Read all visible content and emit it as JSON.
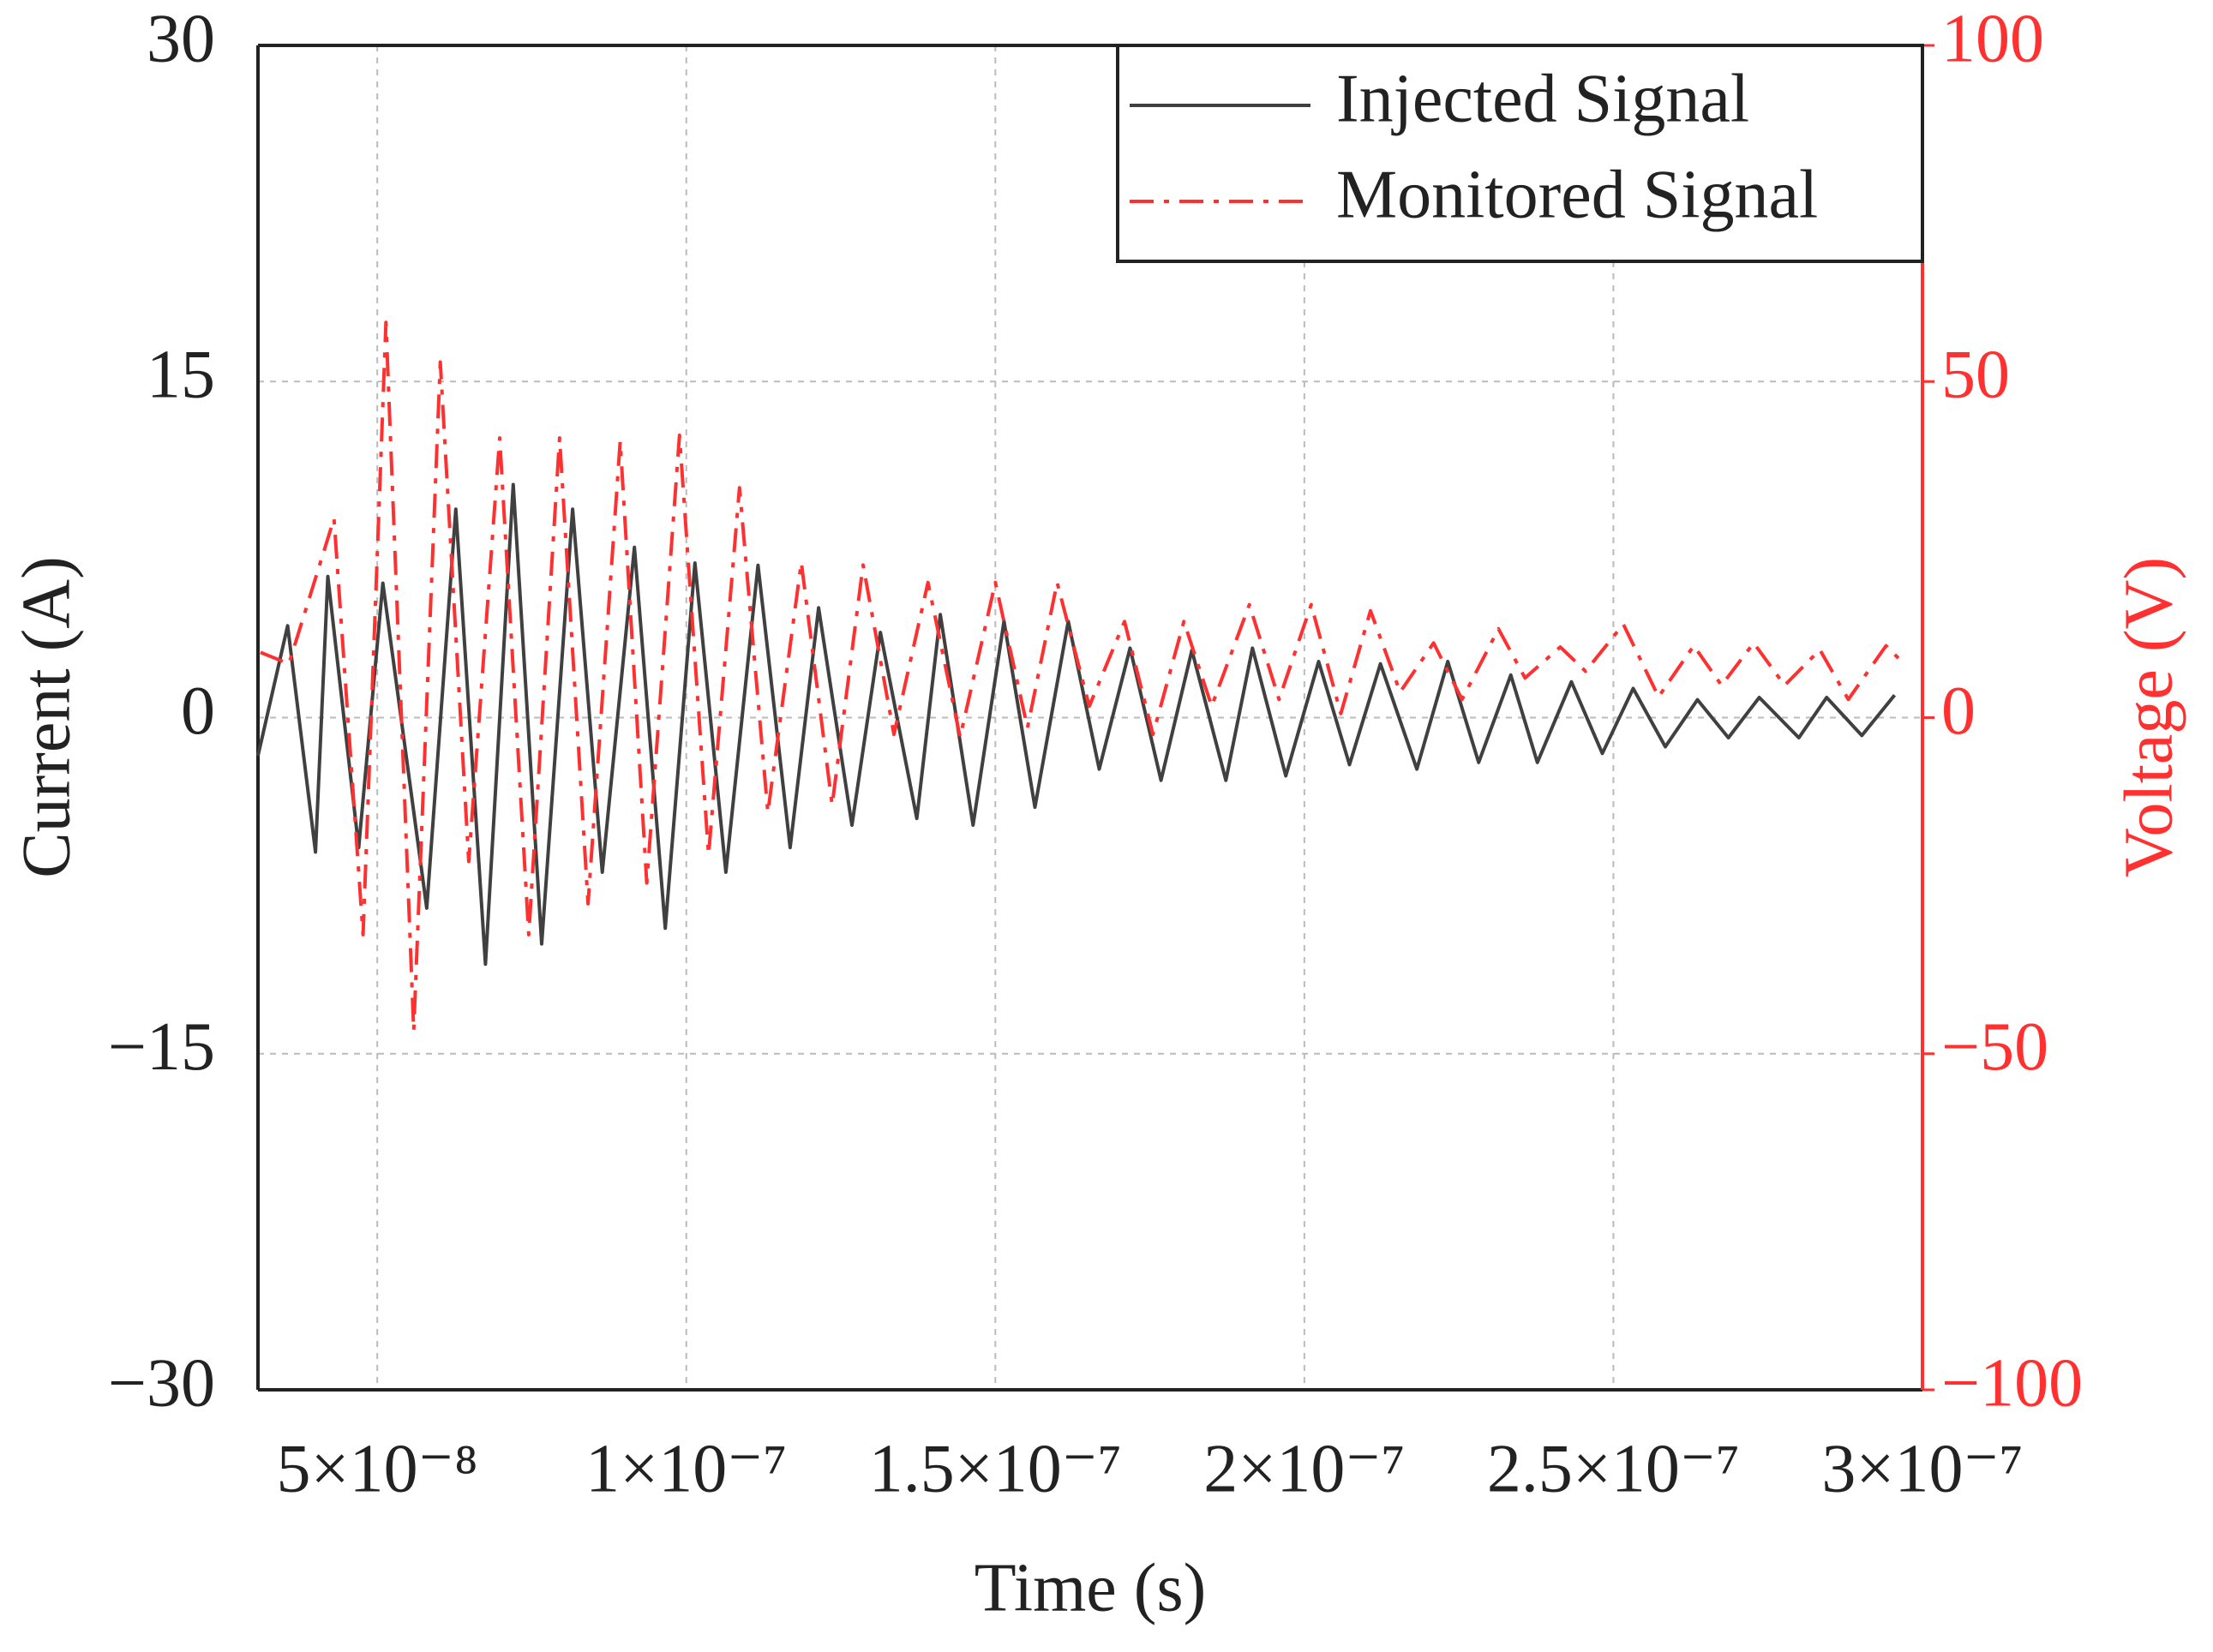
{
  "chart_data": {
    "type": "line",
    "xlabel": "Time (s)",
    "ylabel": "Current (A)",
    "y2label": "Voltage (V)",
    "xlim": [
      3.07e-08,
      3e-07
    ],
    "xticks": [
      {
        "value": 5e-08,
        "label": "5×10⁻⁸"
      },
      {
        "value": 1e-07,
        "label": "1×10⁻⁷"
      },
      {
        "value": 1.5e-07,
        "label": "1.5×10⁻⁷"
      },
      {
        "value": 2e-07,
        "label": "2×10⁻⁷"
      },
      {
        "value": 2.5e-07,
        "label": "2.5×10⁻⁷"
      },
      {
        "value": 3e-07,
        "label": "3×10⁻⁷"
      }
    ],
    "ylim": [
      -30,
      30
    ],
    "yticks": [
      {
        "value": -30,
        "label": "−30"
      },
      {
        "value": -15,
        "label": "−15"
      },
      0,
      15,
      30
    ],
    "y2lim": [
      -100,
      100
    ],
    "y2ticks": [
      {
        "value": -100,
        "label": "−100"
      },
      {
        "value": -50,
        "label": "−50"
      },
      0,
      50,
      100
    ],
    "y2color": "#ff3030",
    "grid": true,
    "legend": "upper right",
    "series": [
      {
        "name": "Injected Signal",
        "color": "#404040",
        "line_style": "solid",
        "x": [
          3.07e-08,
          3.55e-08,
          4e-08,
          4.2e-08,
          4.7e-08,
          5.09e-08,
          5.8e-08,
          6.27e-08,
          6.75e-08,
          7.2e-08,
          7.66e-08,
          8.16e-08,
          8.64e-08,
          9.16e-08,
          9.66e-08,
          1.014e-07,
          1.064e-07,
          1.116e-07,
          1.168e-07,
          1.214e-07,
          1.268e-07,
          1.314e-07,
          1.373e-07,
          1.411e-07,
          1.464e-07,
          1.514e-07,
          1.564e-07,
          1.618e-07,
          1.668e-07,
          1.718e-07,
          1.768e-07,
          1.818e-07,
          1.873e-07,
          1.916e-07,
          1.97e-07,
          2.023e-07,
          2.073e-07,
          2.123e-07,
          2.182e-07,
          2.232e-07,
          2.282e-07,
          2.334e-07,
          2.377e-07,
          2.432e-07,
          2.482e-07,
          2.532e-07,
          2.584e-07,
          2.636e-07,
          2.686e-07,
          2.736e-07,
          2.8e-07,
          2.845e-07,
          2.902e-07,
          2.955e-07
        ],
        "values": [
          -1.7,
          4.1,
          -6.0,
          6.3,
          -5.8,
          6.0,
          -8.5,
          9.3,
          -11.0,
          10.4,
          -10.1,
          9.3,
          -6.9,
          7.6,
          -9.4,
          6.9,
          -6.9,
          6.8,
          -5.8,
          4.9,
          -4.8,
          3.8,
          -4.5,
          4.6,
          -4.8,
          4.3,
          -4.0,
          4.3,
          -2.3,
          3.1,
          -2.8,
          3.0,
          -2.8,
          3.1,
          -2.6,
          2.5,
          -2.1,
          2.4,
          -2.3,
          2.5,
          -2.0,
          1.9,
          -2.0,
          1.6,
          -1.6,
          1.3,
          -1.3,
          0.8,
          -0.9,
          0.9,
          -0.9,
          0.9,
          -0.8,
          1.0
        ]
      },
      {
        "name": "Monitored Signal",
        "color": "#ff3030",
        "line_style": "dashdot",
        "axis": "y2",
        "x": [
          3.11e-08,
          3.57e-08,
          4.3e-08,
          4.77e-08,
          5.14e-08,
          5.59e-08,
          6.02e-08,
          6.48e-08,
          6.98e-08,
          7.45e-08,
          7.95e-08,
          8.41e-08,
          8.93e-08,
          9.36e-08,
          9.89e-08,
          1.036e-07,
          1.086e-07,
          1.132e-07,
          1.186e-07,
          1.236e-07,
          1.286e-07,
          1.336e-07,
          1.391e-07,
          1.443e-07,
          1.5e-07,
          1.552e-07,
          1.6e-07,
          1.652e-07,
          1.709e-07,
          1.755e-07,
          1.805e-07,
          1.85e-07,
          1.911e-07,
          1.959e-07,
          2.011e-07,
          2.059e-07,
          2.107e-07,
          2.155e-07,
          2.209e-07,
          2.255e-07,
          2.314e-07,
          2.357e-07,
          2.414e-07,
          2.455e-07,
          2.516e-07,
          2.573e-07,
          2.63e-07,
          2.675e-07,
          2.727e-07,
          2.777e-07,
          2.834e-07,
          2.88e-07,
          2.941e-07,
          2.97e-07
        ],
        "values": [
          9.7,
          8.0,
          29.6,
          -32.3,
          58.8,
          -46.6,
          52.9,
          -21.4,
          41.6,
          -32.3,
          41.6,
          -27.7,
          41.1,
          -24.6,
          42.0,
          -20.4,
          34.2,
          -14.1,
          23.1,
          -13.0,
          22.7,
          -2.5,
          20.1,
          -2.9,
          20.1,
          -1.5,
          20.1,
          1.7,
          14.3,
          -2.5,
          14.3,
          1.7,
          16.8,
          2.7,
          16.8,
          0.6,
          15.9,
          3.8,
          11.1,
          2.7,
          13.2,
          5.9,
          10.5,
          6.9,
          13.9,
          3.1,
          10.7,
          4.8,
          11.1,
          4.8,
          10.1,
          2.7,
          10.7,
          8.0
        ]
      }
    ]
  }
}
